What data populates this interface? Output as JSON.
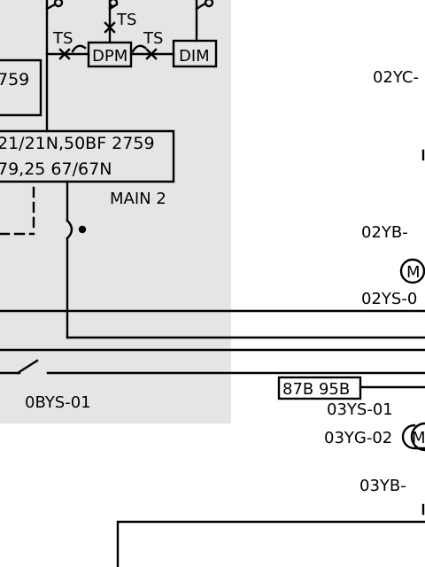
{
  "diagram": {
    "labels": {
      "ts_top": "TS",
      "ts_left": "TS",
      "ts_right": "TS",
      "dpm": "DPM",
      "dim": "DIM",
      "relay1": "759",
      "relay2_line1": "21/21N,50BF 2759",
      "relay2_line2": "79,25 67/67N",
      "main2": "MAIN 2",
      "obys": "0BYS-01",
      "y02yc": "02YC-",
      "y02yb": "02YB-",
      "m_top": "M",
      "y02ys": "02YS-0",
      "box_878": "87B 95B",
      "y03ys": "03YS-01",
      "y03yg": "03YG-02",
      "m_bottom": "M",
      "y03yb": "03YB-"
    },
    "colors": {
      "panel": "#e5e5e5",
      "line": "#000000"
    }
  }
}
